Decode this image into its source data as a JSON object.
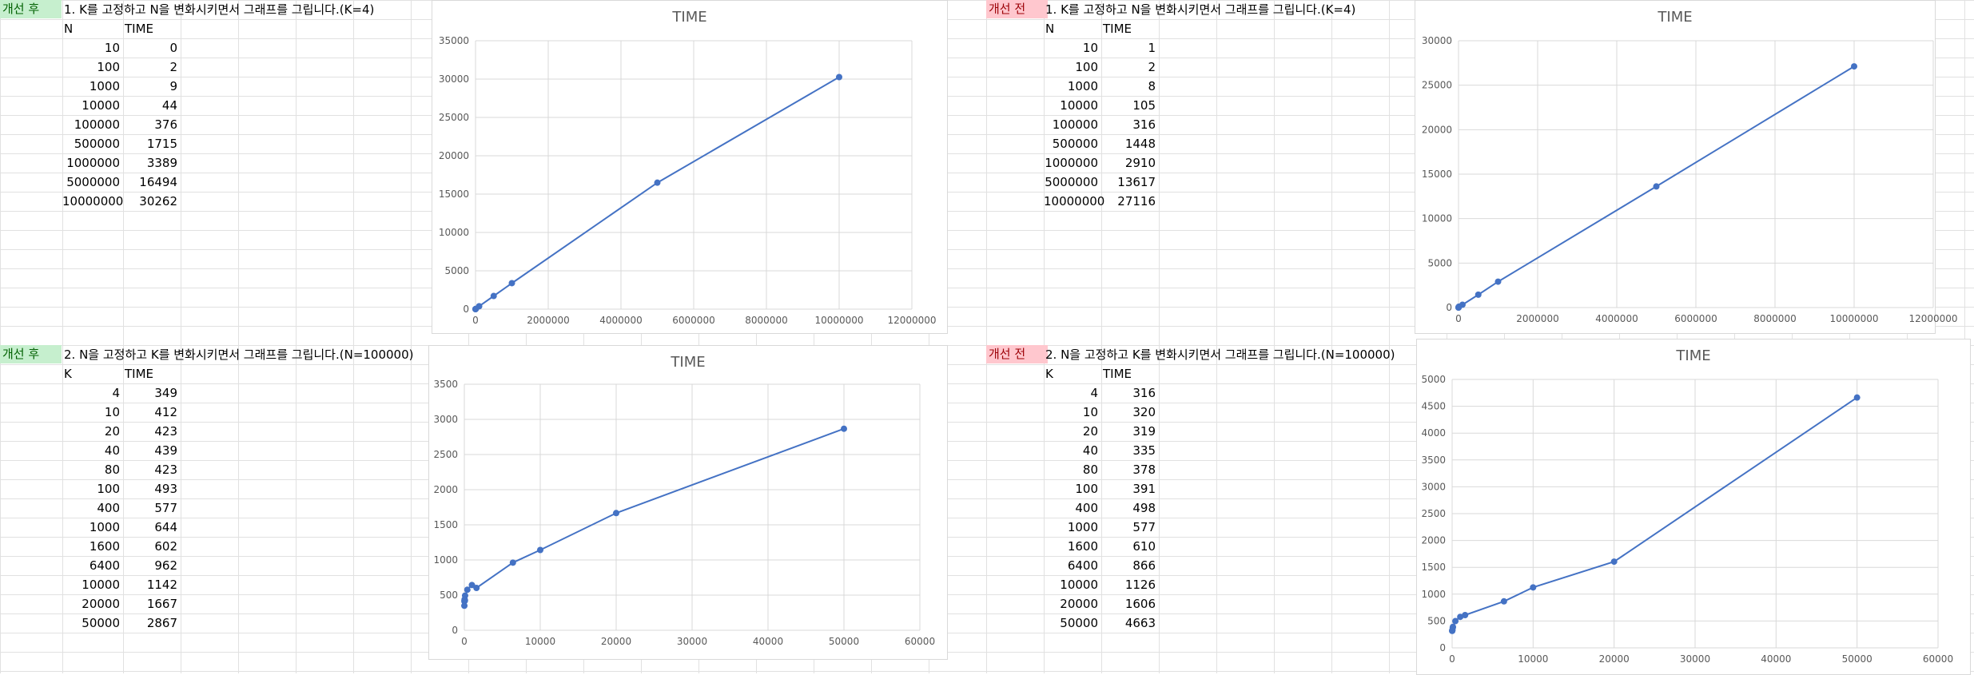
{
  "colors": {
    "after_tag_bg": "#c6efce",
    "after_tag_fg": "#006100",
    "before_tag_bg": "#ffc7ce",
    "before_tag_fg": "#9c0006",
    "gridline": "#d9d9d9",
    "series": "#4472c4",
    "axis_text": "#595959"
  },
  "panels": [
    {
      "id": "after-n",
      "tag": "개선 후",
      "tag_kind": "after",
      "heading": "1. K를 고정하고 N을 변화시키면서 그래프를 그립니다.(K=4)",
      "col_x": "N",
      "col_y": "TIME",
      "rows": [
        [
          "10",
          "0"
        ],
        [
          "100",
          "2"
        ],
        [
          "1000",
          "9"
        ],
        [
          "10000",
          "44"
        ],
        [
          "100000",
          "376"
        ],
        [
          "500000",
          "1715"
        ],
        [
          "1000000",
          "3389"
        ],
        [
          "5000000",
          "16494"
        ],
        [
          "10000000",
          "30262"
        ]
      ]
    },
    {
      "id": "before-n",
      "tag": "개선 전",
      "tag_kind": "before",
      "heading": "1. K를 고정하고 N을 변화시키면서 그래프를 그립니다.(K=4)",
      "col_x": "N",
      "col_y": "TIME",
      "rows": [
        [
          "10",
          "1"
        ],
        [
          "100",
          "2"
        ],
        [
          "1000",
          "8"
        ],
        [
          "10000",
          "105"
        ],
        [
          "100000",
          "316"
        ],
        [
          "500000",
          "1448"
        ],
        [
          "1000000",
          "2910"
        ],
        [
          "5000000",
          "13617"
        ],
        [
          "10000000",
          "27116"
        ]
      ]
    },
    {
      "id": "after-k",
      "tag": "개선 후",
      "tag_kind": "after",
      "heading": "2. N을 고정하고 K를 변화시키면서 그래프를 그립니다.(N=100000)",
      "col_x": "K",
      "col_y": "TIME",
      "rows": [
        [
          "4",
          "349"
        ],
        [
          "10",
          "412"
        ],
        [
          "20",
          "423"
        ],
        [
          "40",
          "439"
        ],
        [
          "80",
          "423"
        ],
        [
          "100",
          "493"
        ],
        [
          "400",
          "577"
        ],
        [
          "1000",
          "644"
        ],
        [
          "1600",
          "602"
        ],
        [
          "6400",
          "962"
        ],
        [
          "10000",
          "1142"
        ],
        [
          "20000",
          "1667"
        ],
        [
          "50000",
          "2867"
        ]
      ]
    },
    {
      "id": "before-k",
      "tag": "개선 전",
      "tag_kind": "before",
      "heading": "2. N을 고정하고 K를 변화시키면서 그래프를 그립니다.(N=100000)",
      "col_x": "K",
      "col_y": "TIME",
      "rows": [
        [
          "4",
          "316"
        ],
        [
          "10",
          "320"
        ],
        [
          "20",
          "319"
        ],
        [
          "40",
          "335"
        ],
        [
          "80",
          "378"
        ],
        [
          "100",
          "391"
        ],
        [
          "400",
          "498"
        ],
        [
          "1000",
          "577"
        ],
        [
          "1600",
          "610"
        ],
        [
          "6400",
          "866"
        ],
        [
          "10000",
          "1126"
        ],
        [
          "20000",
          "1606"
        ],
        [
          "50000",
          "4663"
        ]
      ]
    }
  ],
  "chart_data": [
    {
      "type": "scatter",
      "title": "TIME",
      "xlabel": "",
      "ylabel": "",
      "x": [
        10,
        100,
        1000,
        10000,
        100000,
        500000,
        1000000,
        5000000,
        10000000
      ],
      "y": [
        0,
        2,
        9,
        44,
        376,
        1715,
        3389,
        16494,
        30262
      ],
      "xlim": [
        0,
        12000000
      ],
      "ylim": [
        0,
        35000
      ],
      "xticks": [
        "0",
        "2000000",
        "4000000",
        "6000000",
        "8000000",
        "10000000",
        "12000000"
      ],
      "yticks": [
        "0",
        "5000",
        "10000",
        "15000",
        "20000",
        "25000",
        "30000",
        "35000"
      ],
      "grid": true,
      "lines": true,
      "legend": "none"
    },
    {
      "type": "scatter",
      "title": "TIME",
      "xlabel": "",
      "ylabel": "",
      "x": [
        10,
        100,
        1000,
        10000,
        100000,
        500000,
        1000000,
        5000000,
        10000000
      ],
      "y": [
        1,
        2,
        8,
        105,
        316,
        1448,
        2910,
        13617,
        27116
      ],
      "xlim": [
        0,
        12000000
      ],
      "ylim": [
        0,
        30000
      ],
      "xticks": [
        "0",
        "2000000",
        "4000000",
        "6000000",
        "8000000",
        "10000000",
        "12000000"
      ],
      "yticks": [
        "0",
        "5000",
        "10000",
        "15000",
        "20000",
        "25000",
        "30000"
      ],
      "grid": true,
      "lines": true,
      "legend": "none"
    },
    {
      "type": "scatter",
      "title": "TIME",
      "xlabel": "",
      "ylabel": "",
      "x": [
        4,
        10,
        20,
        40,
        80,
        100,
        400,
        1000,
        1600,
        6400,
        10000,
        20000,
        50000
      ],
      "y": [
        349,
        412,
        423,
        439,
        423,
        493,
        577,
        644,
        602,
        962,
        1142,
        1667,
        2867
      ],
      "xlim": [
        0,
        60000
      ],
      "ylim": [
        0,
        3500
      ],
      "xticks": [
        "0",
        "10000",
        "20000",
        "30000",
        "40000",
        "50000",
        "60000"
      ],
      "yticks": [
        "0",
        "500",
        "1000",
        "1500",
        "2000",
        "2500",
        "3000",
        "3500"
      ],
      "grid": true,
      "lines": true,
      "legend": "none"
    },
    {
      "type": "scatter",
      "title": "TIME",
      "xlabel": "",
      "ylabel": "",
      "x": [
        4,
        10,
        20,
        40,
        80,
        100,
        400,
        1000,
        1600,
        6400,
        10000,
        20000,
        50000
      ],
      "y": [
        316,
        320,
        319,
        335,
        378,
        391,
        498,
        577,
        610,
        866,
        1126,
        1606,
        4663
      ],
      "xlim": [
        0,
        60000
      ],
      "ylim": [
        0,
        5000
      ],
      "xticks": [
        "0",
        "10000",
        "20000",
        "30000",
        "40000",
        "50000",
        "60000"
      ],
      "yticks": [
        "0",
        "500",
        "1000",
        "1500",
        "2000",
        "2500",
        "3000",
        "3500",
        "4000",
        "4500",
        "5000"
      ],
      "grid": true,
      "lines": true,
      "legend": "none"
    }
  ]
}
